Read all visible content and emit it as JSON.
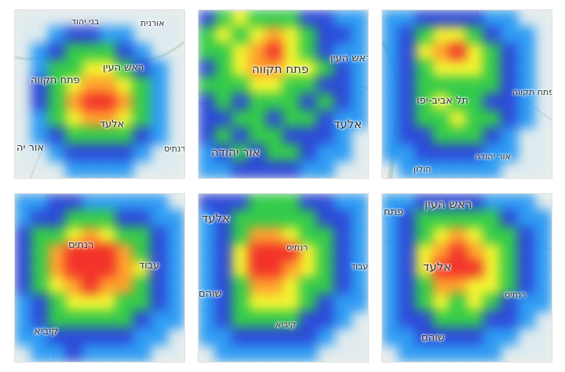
{
  "tiles": [
    {
      "labels": {
        "a": "בני יהוד",
        "b": "אורנית",
        "c": "ראש העין",
        "d": "פתח תקווה",
        "e": "אלעד",
        "f": "אור יה",
        "g": "רנתיס"
      },
      "heat": [
        [
          0,
          0,
          0,
          0,
          0,
          0,
          0,
          0,
          0,
          0
        ],
        [
          0,
          0,
          1,
          2,
          2,
          1,
          1,
          0,
          0,
          0
        ],
        [
          0,
          1,
          2,
          3,
          3,
          3,
          2,
          1,
          0,
          0
        ],
        [
          0,
          1,
          3,
          3,
          4,
          4,
          3,
          2,
          1,
          0
        ],
        [
          0,
          2,
          3,
          4,
          5,
          5,
          4,
          3,
          1,
          0
        ],
        [
          0,
          2,
          3,
          5,
          6,
          6,
          5,
          3,
          1,
          0
        ],
        [
          0,
          1,
          3,
          4,
          5,
          5,
          4,
          3,
          1,
          0
        ],
        [
          0,
          1,
          2,
          3,
          3,
          3,
          3,
          2,
          1,
          0
        ],
        [
          0,
          0,
          1,
          2,
          2,
          2,
          2,
          1,
          0,
          0
        ],
        [
          0,
          0,
          0,
          1,
          1,
          1,
          1,
          0,
          0,
          0
        ]
      ]
    },
    {
      "labels": {
        "a": "ראש העין",
        "b": "פתח תקווה",
        "c": "אלעד",
        "d": "אור יהודה"
      },
      "heat": [
        [
          2,
          3,
          4,
          3,
          3,
          3,
          2,
          2,
          1,
          1
        ],
        [
          3,
          4,
          3,
          4,
          5,
          4,
          3,
          2,
          2,
          1
        ],
        [
          3,
          3,
          4,
          5,
          6,
          4,
          3,
          2,
          1,
          1
        ],
        [
          2,
          3,
          4,
          5,
          5,
          4,
          4,
          3,
          2,
          1
        ],
        [
          3,
          3,
          3,
          4,
          4,
          3,
          3,
          2,
          2,
          1
        ],
        [
          2,
          3,
          2,
          3,
          3,
          3,
          2,
          3,
          2,
          1
        ],
        [
          2,
          2,
          3,
          3,
          2,
          3,
          3,
          2,
          1,
          1
        ],
        [
          2,
          3,
          2,
          3,
          3,
          2,
          2,
          2,
          1,
          0
        ],
        [
          1,
          2,
          3,
          2,
          3,
          3,
          2,
          1,
          1,
          0
        ],
        [
          1,
          1,
          2,
          2,
          2,
          2,
          1,
          1,
          0,
          0
        ]
      ]
    },
    {
      "labels": {
        "a": "תל אביב-יפו",
        "b": "פתח תקווה",
        "c": "אור יהודה",
        "d": "חולון"
      },
      "heat": [
        [
          1,
          1,
          2,
          2,
          2,
          2,
          1,
          1,
          0,
          0
        ],
        [
          1,
          2,
          3,
          4,
          4,
          3,
          2,
          1,
          1,
          0
        ],
        [
          1,
          2,
          4,
          5,
          6,
          4,
          3,
          2,
          1,
          0
        ],
        [
          1,
          2,
          3,
          4,
          4,
          4,
          3,
          2,
          1,
          0
        ],
        [
          1,
          2,
          3,
          3,
          3,
          3,
          3,
          2,
          1,
          0
        ],
        [
          1,
          2,
          3,
          4,
          3,
          3,
          2,
          2,
          1,
          0
        ],
        [
          1,
          2,
          3,
          3,
          4,
          3,
          3,
          2,
          1,
          0
        ],
        [
          1,
          2,
          2,
          3,
          3,
          3,
          2,
          1,
          0,
          0
        ],
        [
          1,
          1,
          2,
          2,
          2,
          2,
          1,
          1,
          0,
          0
        ],
        [
          0,
          1,
          1,
          1,
          1,
          1,
          1,
          0,
          0,
          0
        ]
      ]
    },
    {
      "labels": {
        "a": "רנתיס",
        "b": "עבוד",
        "c": "קיביא"
      },
      "heat": [
        [
          1,
          1,
          2,
          2,
          1,
          1,
          1,
          1,
          1,
          0
        ],
        [
          1,
          2,
          2,
          3,
          3,
          3,
          2,
          2,
          1,
          1
        ],
        [
          2,
          3,
          3,
          4,
          5,
          4,
          3,
          3,
          2,
          1
        ],
        [
          2,
          3,
          5,
          6,
          6,
          6,
          5,
          3,
          2,
          1
        ],
        [
          2,
          3,
          5,
          6,
          6,
          6,
          5,
          4,
          2,
          1
        ],
        [
          2,
          3,
          4,
          5,
          6,
          5,
          5,
          3,
          2,
          1
        ],
        [
          1,
          2,
          3,
          4,
          4,
          4,
          3,
          3,
          2,
          1
        ],
        [
          1,
          2,
          3,
          3,
          3,
          3,
          3,
          2,
          1,
          1
        ],
        [
          1,
          1,
          2,
          2,
          2,
          2,
          2,
          1,
          1,
          0
        ],
        [
          0,
          1,
          1,
          2,
          1,
          1,
          1,
          1,
          0,
          0
        ]
      ]
    },
    {
      "labels": {
        "a": "אלעד",
        "b": "רנתיס",
        "c": "עבוד",
        "d": "שוהם",
        "e": "קיביא"
      },
      "heat": [
        [
          2,
          2,
          2,
          3,
          3,
          3,
          2,
          2,
          1,
          1
        ],
        [
          1,
          2,
          3,
          3,
          3,
          3,
          3,
          2,
          2,
          1
        ],
        [
          1,
          2,
          3,
          5,
          5,
          4,
          3,
          3,
          2,
          1
        ],
        [
          1,
          2,
          4,
          6,
          6,
          6,
          4,
          3,
          2,
          1
        ],
        [
          1,
          2,
          4,
          6,
          6,
          5,
          4,
          3,
          2,
          1
        ],
        [
          1,
          2,
          3,
          5,
          5,
          4,
          3,
          3,
          2,
          1
        ],
        [
          1,
          2,
          3,
          4,
          4,
          4,
          3,
          2,
          1,
          1
        ],
        [
          1,
          2,
          3,
          3,
          3,
          3,
          2,
          2,
          1,
          0
        ],
        [
          1,
          1,
          2,
          2,
          2,
          2,
          2,
          1,
          0,
          0
        ],
        [
          0,
          1,
          1,
          1,
          1,
          1,
          1,
          0,
          0,
          0
        ]
      ]
    },
    {
      "labels": {
        "a": "פתח",
        "b": "ראש העין",
        "c": "אלעד",
        "d": "רנתיס",
        "e": "שוהם"
      },
      "heat": [
        [
          1,
          1,
          2,
          2,
          2,
          2,
          1,
          1,
          1,
          0
        ],
        [
          1,
          2,
          3,
          3,
          3,
          3,
          3,
          2,
          1,
          1
        ],
        [
          1,
          2,
          3,
          4,
          5,
          4,
          3,
          3,
          2,
          1
        ],
        [
          1,
          2,
          4,
          5,
          6,
          5,
          4,
          3,
          2,
          1
        ],
        [
          1,
          2,
          4,
          6,
          6,
          6,
          4,
          3,
          2,
          1
        ],
        [
          1,
          2,
          3,
          5,
          5,
          4,
          4,
          3,
          2,
          1
        ],
        [
          1,
          2,
          3,
          4,
          3,
          4,
          3,
          2,
          1,
          1
        ],
        [
          1,
          2,
          2,
          3,
          3,
          3,
          2,
          2,
          1,
          0
        ],
        [
          1,
          1,
          2,
          2,
          2,
          2,
          1,
          1,
          0,
          0
        ],
        [
          0,
          1,
          1,
          1,
          1,
          1,
          1,
          0,
          0,
          0
        ]
      ]
    }
  ],
  "palette": [
    "#8fd0ff",
    "#2196f3",
    "#1f3fd6",
    "#27c93f",
    "#f3f324",
    "#ff9b1f",
    "#f2261c"
  ]
}
